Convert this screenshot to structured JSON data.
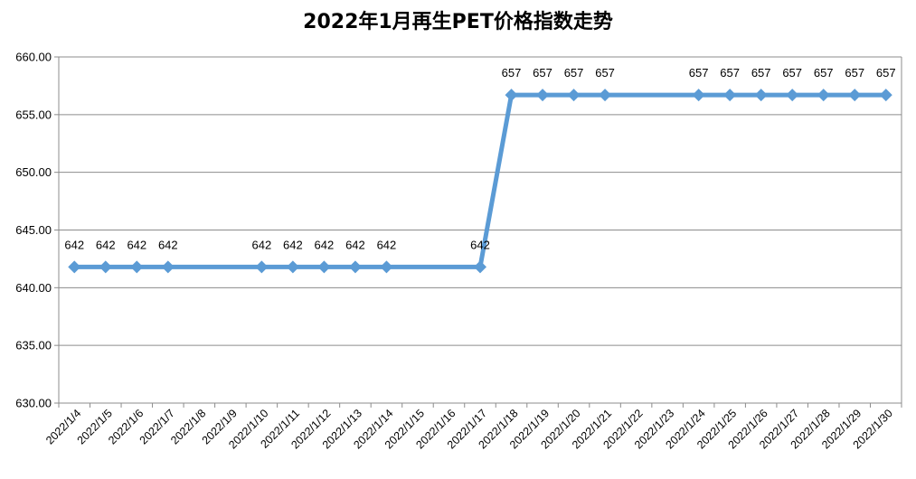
{
  "chart_data": {
    "type": "line",
    "title": "2022年1月再生PET价格指数走势",
    "xlabel": "",
    "ylabel": "",
    "ylim": [
      630,
      660
    ],
    "y_ticks": [
      "630.00",
      "635.00",
      "640.00",
      "645.00",
      "650.00",
      "655.00",
      "660.00"
    ],
    "grid": true,
    "legend": "none",
    "categories": [
      "2022/1/4",
      "2022/1/5",
      "2022/1/6",
      "2022/1/7",
      "2022/1/8",
      "2022/1/9",
      "2022/1/10",
      "2022/1/11",
      "2022/1/12",
      "2022/1/13",
      "2022/1/14",
      "2022/1/15",
      "2022/1/16",
      "2022/1/17",
      "2022/1/18",
      "2022/1/19",
      "2022/1/20",
      "2022/1/21",
      "2022/1/22",
      "2022/1/23",
      "2022/1/24",
      "2022/1/25",
      "2022/1/26",
      "2022/1/27",
      "2022/1/28",
      "2022/1/29",
      "2022/1/30"
    ],
    "series": [
      {
        "color": "#5b9bd5",
        "values": [
          641.8,
          641.8,
          641.8,
          641.8,
          null,
          null,
          641.8,
          641.8,
          641.8,
          641.8,
          641.8,
          null,
          null,
          641.8,
          656.7,
          656.7,
          656.7,
          656.7,
          null,
          null,
          656.7,
          656.7,
          656.7,
          656.7,
          656.7,
          656.7,
          656.7
        ],
        "labels": [
          "642",
          "642",
          "642",
          "642",
          "",
          "",
          "642",
          "642",
          "642",
          "642",
          "642",
          "",
          "",
          "642",
          "657",
          "657",
          "657",
          "657",
          "",
          "",
          "657",
          "657",
          "657",
          "657",
          "657",
          "657",
          "657"
        ]
      }
    ]
  }
}
